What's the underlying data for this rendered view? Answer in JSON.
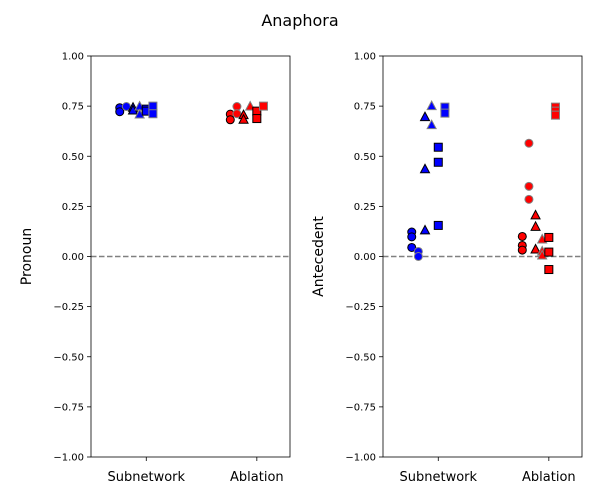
{
  "title": "Anaphora",
  "colors": {
    "subnetwork": "#0000ff",
    "ablation": "#ff0000",
    "zero_line": "#808080"
  },
  "chart_data": [
    {
      "type": "scatter",
      "ylabel": "Pronoun",
      "categories": [
        "Subnetwork",
        "Ablation"
      ],
      "ylim": [
        -1.0,
        1.0
      ],
      "yticks": [
        -1.0,
        -0.75,
        -0.5,
        -0.25,
        0.0,
        0.25,
        0.5,
        0.75,
        1.0
      ],
      "yticklabels": [
        "−1.00",
        "−0.75",
        "−0.50",
        "−0.25",
        "0.00",
        "0.25",
        "0.50",
        "0.75",
        "1.00"
      ],
      "reference_line": 0.0,
      "points": [
        {
          "category": "Subnetwork",
          "x": 0.76,
          "y": 0.742,
          "marker": "circle",
          "edge": "black"
        },
        {
          "category": "Subnetwork",
          "x": 0.76,
          "y": 0.722,
          "marker": "circle",
          "edge": "black"
        },
        {
          "category": "Subnetwork",
          "x": 0.82,
          "y": 0.748,
          "marker": "circle",
          "edge": "gray"
        },
        {
          "category": "Subnetwork",
          "x": 0.88,
          "y": 0.742,
          "marker": "triangle",
          "edge": "black"
        },
        {
          "category": "Subnetwork",
          "x": 0.88,
          "y": 0.728,
          "marker": "triangle",
          "edge": "black"
        },
        {
          "category": "Subnetwork",
          "x": 0.94,
          "y": 0.748,
          "marker": "triangle",
          "edge": "gray"
        },
        {
          "category": "Subnetwork",
          "x": 0.94,
          "y": 0.708,
          "marker": "triangle",
          "edge": "gray"
        },
        {
          "category": "Subnetwork",
          "x": 1.0,
          "y": 0.735,
          "marker": "square",
          "edge": "black"
        },
        {
          "category": "Subnetwork",
          "x": 1.0,
          "y": 0.725,
          "marker": "square",
          "edge": "black"
        },
        {
          "category": "Subnetwork",
          "x": 1.06,
          "y": 0.75,
          "marker": "square",
          "edge": "gray"
        },
        {
          "category": "Subnetwork",
          "x": 1.06,
          "y": 0.712,
          "marker": "square",
          "edge": "gray"
        },
        {
          "category": "Ablation",
          "x": 1.76,
          "y": 0.71,
          "marker": "circle",
          "edge": "black"
        },
        {
          "category": "Ablation",
          "x": 1.76,
          "y": 0.682,
          "marker": "circle",
          "edge": "black"
        },
        {
          "category": "Ablation",
          "x": 1.82,
          "y": 0.748,
          "marker": "circle",
          "edge": "gray"
        },
        {
          "category": "Ablation",
          "x": 1.82,
          "y": 0.712,
          "marker": "circle",
          "edge": "gray"
        },
        {
          "category": "Ablation",
          "x": 1.88,
          "y": 0.705,
          "marker": "triangle",
          "edge": "black"
        },
        {
          "category": "Ablation",
          "x": 1.88,
          "y": 0.682,
          "marker": "triangle",
          "edge": "black"
        },
        {
          "category": "Ablation",
          "x": 1.94,
          "y": 0.748,
          "marker": "triangle",
          "edge": "gray"
        },
        {
          "category": "Ablation",
          "x": 2.0,
          "y": 0.725,
          "marker": "square",
          "edge": "black"
        },
        {
          "category": "Ablation",
          "x": 2.0,
          "y": 0.688,
          "marker": "square",
          "edge": "black"
        },
        {
          "category": "Ablation",
          "x": 2.06,
          "y": 0.75,
          "marker": "square",
          "edge": "gray"
        }
      ]
    },
    {
      "type": "scatter",
      "ylabel": "Antecedent",
      "categories": [
        "Subnetwork",
        "Ablation"
      ],
      "ylim": [
        -1.0,
        1.0
      ],
      "yticks": [
        -1.0,
        -0.75,
        -0.5,
        -0.25,
        0.0,
        0.25,
        0.5,
        0.75,
        1.0
      ],
      "yticklabels": [
        "−1.00",
        "−0.75",
        "−0.50",
        "−0.25",
        "0.00",
        "0.25",
        "0.50",
        "0.75",
        "1.00"
      ],
      "reference_line": 0.0,
      "points": [
        {
          "category": "Subnetwork",
          "x": 0.76,
          "y": 0.122,
          "marker": "circle",
          "edge": "black"
        },
        {
          "category": "Subnetwork",
          "x": 0.76,
          "y": 0.098,
          "marker": "circle",
          "edge": "black"
        },
        {
          "category": "Subnetwork",
          "x": 0.76,
          "y": 0.045,
          "marker": "circle",
          "edge": "black"
        },
        {
          "category": "Subnetwork",
          "x": 0.82,
          "y": 0.025,
          "marker": "circle",
          "edge": "gray"
        },
        {
          "category": "Subnetwork",
          "x": 0.82,
          "y": 0.0,
          "marker": "circle",
          "edge": "gray"
        },
        {
          "category": "Subnetwork",
          "x": 0.88,
          "y": 0.695,
          "marker": "triangle",
          "edge": "black"
        },
        {
          "category": "Subnetwork",
          "x": 0.88,
          "y": 0.435,
          "marker": "triangle",
          "edge": "black"
        },
        {
          "category": "Subnetwork",
          "x": 0.88,
          "y": 0.13,
          "marker": "triangle",
          "edge": "black"
        },
        {
          "category": "Subnetwork",
          "x": 0.94,
          "y": 0.75,
          "marker": "triangle",
          "edge": "gray"
        },
        {
          "category": "Subnetwork",
          "x": 0.94,
          "y": 0.655,
          "marker": "triangle",
          "edge": "gray"
        },
        {
          "category": "Subnetwork",
          "x": 1.0,
          "y": 0.545,
          "marker": "square",
          "edge": "black"
        },
        {
          "category": "Subnetwork",
          "x": 1.0,
          "y": 0.47,
          "marker": "square",
          "edge": "black"
        },
        {
          "category": "Subnetwork",
          "x": 1.0,
          "y": 0.155,
          "marker": "square",
          "edge": "black"
        },
        {
          "category": "Subnetwork",
          "x": 1.06,
          "y": 0.745,
          "marker": "square",
          "edge": "gray"
        },
        {
          "category": "Subnetwork",
          "x": 1.06,
          "y": 0.715,
          "marker": "square",
          "edge": "gray"
        },
        {
          "category": "Ablation",
          "x": 1.76,
          "y": 0.1,
          "marker": "circle",
          "edge": "black"
        },
        {
          "category": "Ablation",
          "x": 1.76,
          "y": 0.055,
          "marker": "circle",
          "edge": "black"
        },
        {
          "category": "Ablation",
          "x": 1.76,
          "y": 0.032,
          "marker": "circle",
          "edge": "black"
        },
        {
          "category": "Ablation",
          "x": 1.82,
          "y": 0.565,
          "marker": "circle",
          "edge": "gray"
        },
        {
          "category": "Ablation",
          "x": 1.82,
          "y": 0.35,
          "marker": "circle",
          "edge": "gray"
        },
        {
          "category": "Ablation",
          "x": 1.82,
          "y": 0.285,
          "marker": "circle",
          "edge": "gray"
        },
        {
          "category": "Ablation",
          "x": 1.88,
          "y": 0.205,
          "marker": "triangle",
          "edge": "black"
        },
        {
          "category": "Ablation",
          "x": 1.88,
          "y": 0.148,
          "marker": "triangle",
          "edge": "black"
        },
        {
          "category": "Ablation",
          "x": 1.88,
          "y": 0.035,
          "marker": "triangle",
          "edge": "black"
        },
        {
          "category": "Ablation",
          "x": 1.94,
          "y": 0.085,
          "marker": "triangle",
          "edge": "gray"
        },
        {
          "category": "Ablation",
          "x": 1.94,
          "y": 0.025,
          "marker": "triangle",
          "edge": "gray"
        },
        {
          "category": "Ablation",
          "x": 1.94,
          "y": 0.005,
          "marker": "triangle",
          "edge": "gray"
        },
        {
          "category": "Ablation",
          "x": 2.0,
          "y": 0.095,
          "marker": "square",
          "edge": "black"
        },
        {
          "category": "Ablation",
          "x": 2.0,
          "y": 0.022,
          "marker": "square",
          "edge": "black"
        },
        {
          "category": "Ablation",
          "x": 2.0,
          "y": -0.065,
          "marker": "square",
          "edge": "black"
        },
        {
          "category": "Ablation",
          "x": 2.06,
          "y": 0.745,
          "marker": "square",
          "edge": "gray"
        },
        {
          "category": "Ablation",
          "x": 2.06,
          "y": 0.725,
          "marker": "square",
          "edge": "gray"
        },
        {
          "category": "Ablation",
          "x": 2.06,
          "y": 0.705,
          "marker": "square",
          "edge": "gray"
        }
      ]
    }
  ]
}
